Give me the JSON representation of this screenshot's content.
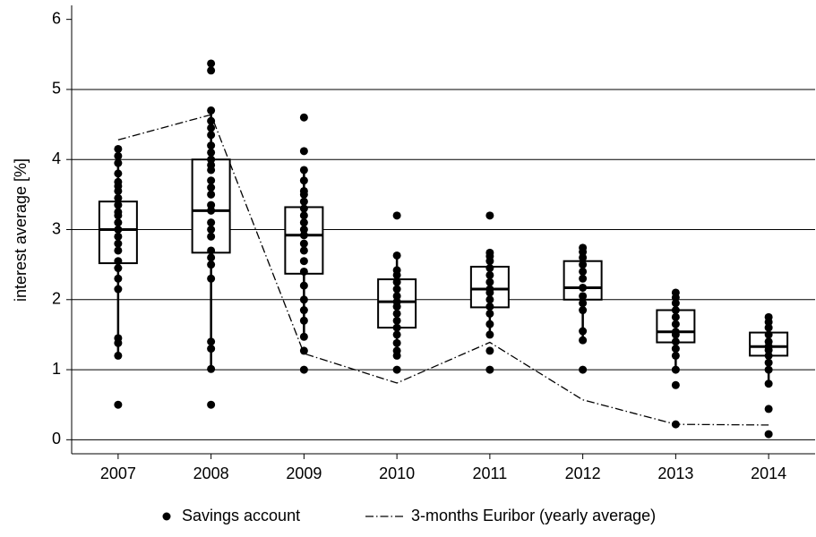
{
  "chart_data": {
    "type": "box",
    "y_label": "interest average [%]",
    "categories": [
      "2007",
      "2008",
      "2009",
      "2010",
      "2011",
      "2012",
      "2013",
      "2014"
    ],
    "ylim": [
      -0.2,
      6.2
    ],
    "yticks": [
      0,
      1,
      2,
      3,
      4,
      5,
      6
    ],
    "grid": true,
    "boxes": [
      {
        "low": 1.2,
        "q1": 2.52,
        "median": 3.0,
        "q3": 3.4,
        "high": 4.15
      },
      {
        "low": 1.0,
        "q1": 2.67,
        "median": 3.27,
        "q3": 4.0,
        "high": 4.7
      },
      {
        "low": 1.47,
        "q1": 2.37,
        "median": 2.92,
        "q3": 3.32,
        "high": 3.85
      },
      {
        "low": 1.27,
        "q1": 1.6,
        "median": 1.97,
        "q3": 2.29,
        "high": 2.63
      },
      {
        "low": 1.5,
        "q1": 1.89,
        "median": 2.15,
        "q3": 2.47,
        "high": 2.67
      },
      {
        "low": 1.42,
        "q1": 2.0,
        "median": 2.17,
        "q3": 2.55,
        "high": 2.74
      },
      {
        "low": 1.0,
        "q1": 1.39,
        "median": 1.54,
        "q3": 1.85,
        "high": 2.1
      },
      {
        "low": 0.8,
        "q1": 1.2,
        "median": 1.33,
        "q3": 1.53,
        "high": 1.75
      }
    ],
    "series": [
      {
        "name": "Savings account",
        "color": "#000000",
        "points": [
          [
            0.5,
            1.2,
            1.38,
            1.45,
            2.15,
            2.3,
            2.45,
            2.55,
            2.7,
            2.8,
            2.9,
            3.0,
            3.1,
            3.2,
            3.25,
            3.35,
            3.45,
            3.55,
            3.62,
            3.68,
            3.8,
            3.95,
            4.05,
            4.15
          ],
          [
            0.5,
            1.01,
            1.3,
            1.4,
            2.3,
            2.5,
            2.6,
            2.7,
            2.9,
            3.0,
            3.1,
            3.27,
            3.35,
            3.5,
            3.6,
            3.7,
            3.85,
            3.92,
            4.0,
            4.1,
            4.2,
            4.35,
            4.45,
            4.55,
            4.7,
            5.27,
            5.37
          ],
          [
            1.0,
            1.27,
            1.47,
            1.7,
            1.85,
            2.0,
            2.2,
            2.4,
            2.55,
            2.7,
            2.8,
            2.92,
            3.0,
            3.1,
            3.2,
            3.3,
            3.4,
            3.5,
            3.55,
            3.7,
            3.85,
            4.12,
            4.6
          ],
          [
            1.0,
            1.2,
            1.27,
            1.38,
            1.5,
            1.6,
            1.7,
            1.8,
            1.9,
            1.97,
            2.05,
            2.15,
            2.25,
            2.35,
            2.42,
            2.63,
            3.2
          ],
          [
            1.0,
            1.27,
            1.5,
            1.65,
            1.8,
            1.9,
            2.0,
            2.1,
            2.15,
            2.25,
            2.35,
            2.45,
            2.55,
            2.62,
            2.67,
            3.2
          ],
          [
            1.0,
            1.42,
            1.55,
            1.85,
            1.95,
            2.05,
            2.17,
            2.3,
            2.4,
            2.5,
            2.6,
            2.68,
            2.74
          ],
          [
            0.22,
            0.78,
            1.0,
            1.2,
            1.3,
            1.4,
            1.5,
            1.54,
            1.65,
            1.75,
            1.85,
            1.95,
            2.03,
            2.1
          ],
          [
            0.08,
            0.44,
            0.8,
            1.0,
            1.1,
            1.2,
            1.28,
            1.33,
            1.4,
            1.5,
            1.6,
            1.68,
            1.75
          ]
        ]
      },
      {
        "name": "3-months Euribor (yearly average)",
        "color": "#000000",
        "values": [
          4.28,
          4.64,
          1.23,
          0.81,
          1.39,
          0.57,
          0.22,
          0.21
        ]
      }
    ]
  }
}
